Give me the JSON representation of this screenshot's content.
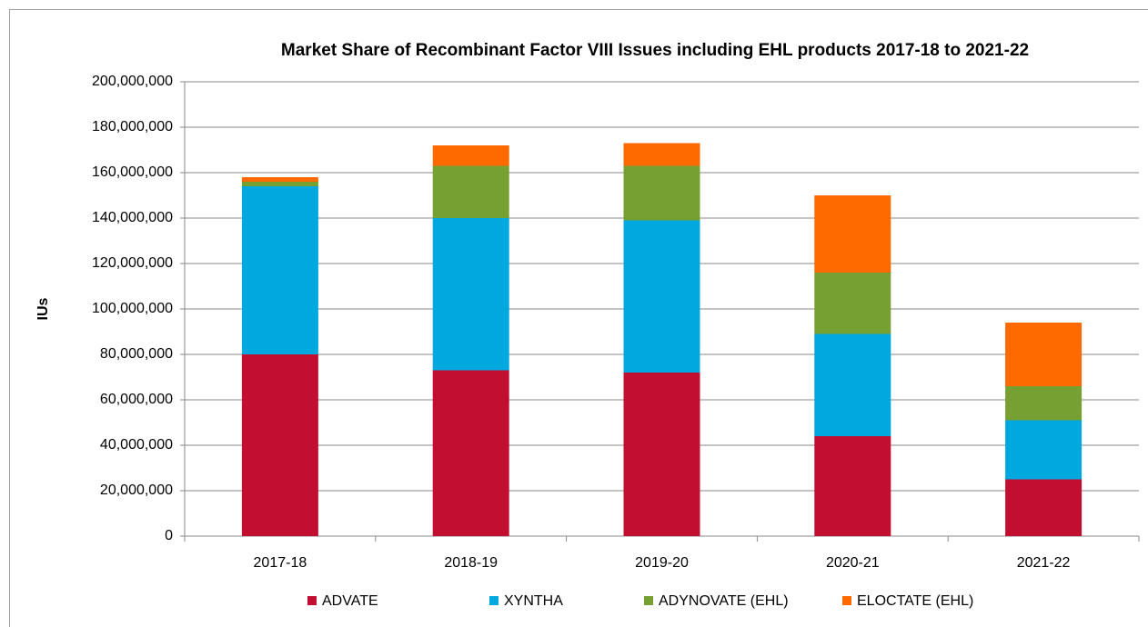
{
  "chart_data": {
    "type": "stacked_bar",
    "title": "Market Share of Recombinant Factor VIII Issues including EHL products 2017-18 to 2021-22",
    "y_label": "IUs",
    "categories": [
      "2017-18",
      "2018-19",
      "2019-20",
      "2020-21",
      "2021-22"
    ],
    "series": [
      {
        "name": "ADVATE",
        "color": "#c20e30",
        "values": [
          80000000,
          73000000,
          72000000,
          44000000,
          25000000
        ]
      },
      {
        "name": "XYNTHA",
        "color": "#00a8e0",
        "values": [
          74000000,
          67000000,
          67000000,
          45000000,
          26000000
        ]
      },
      {
        "name": "ADYNOVATE (EHL)",
        "color": "#77a033",
        "values": [
          2000000,
          23000000,
          24000000,
          27000000,
          15000000
        ]
      },
      {
        "name": "ELOCTATE (EHL)",
        "color": "#ff6a00",
        "values": [
          2000000,
          9000000,
          10000000,
          34000000,
          28000000
        ]
      }
    ],
    "ylim": [
      0,
      200000000
    ],
    "yticks": [
      0,
      {
        "value": 20000000,
        "label": "20,000,000"
      },
      {
        "value": 40000000,
        "label": "40,000,000"
      },
      {
        "value": 60000000,
        "label": "60,000,000"
      },
      {
        "value": 80000000,
        "label": "80,000,000"
      },
      {
        "value": 100000000,
        "label": "100,000,000"
      },
      {
        "value": 120000000,
        "label": "120,000,000"
      },
      {
        "value": 140000000,
        "label": "140,000,000"
      },
      {
        "value": 160000000,
        "label": "160,000,000"
      },
      {
        "value": 180000000,
        "label": "180,000,000"
      },
      {
        "value": 200000000,
        "label": "200,000,000"
      }
    ],
    "grid": true,
    "legend": "bottom"
  }
}
